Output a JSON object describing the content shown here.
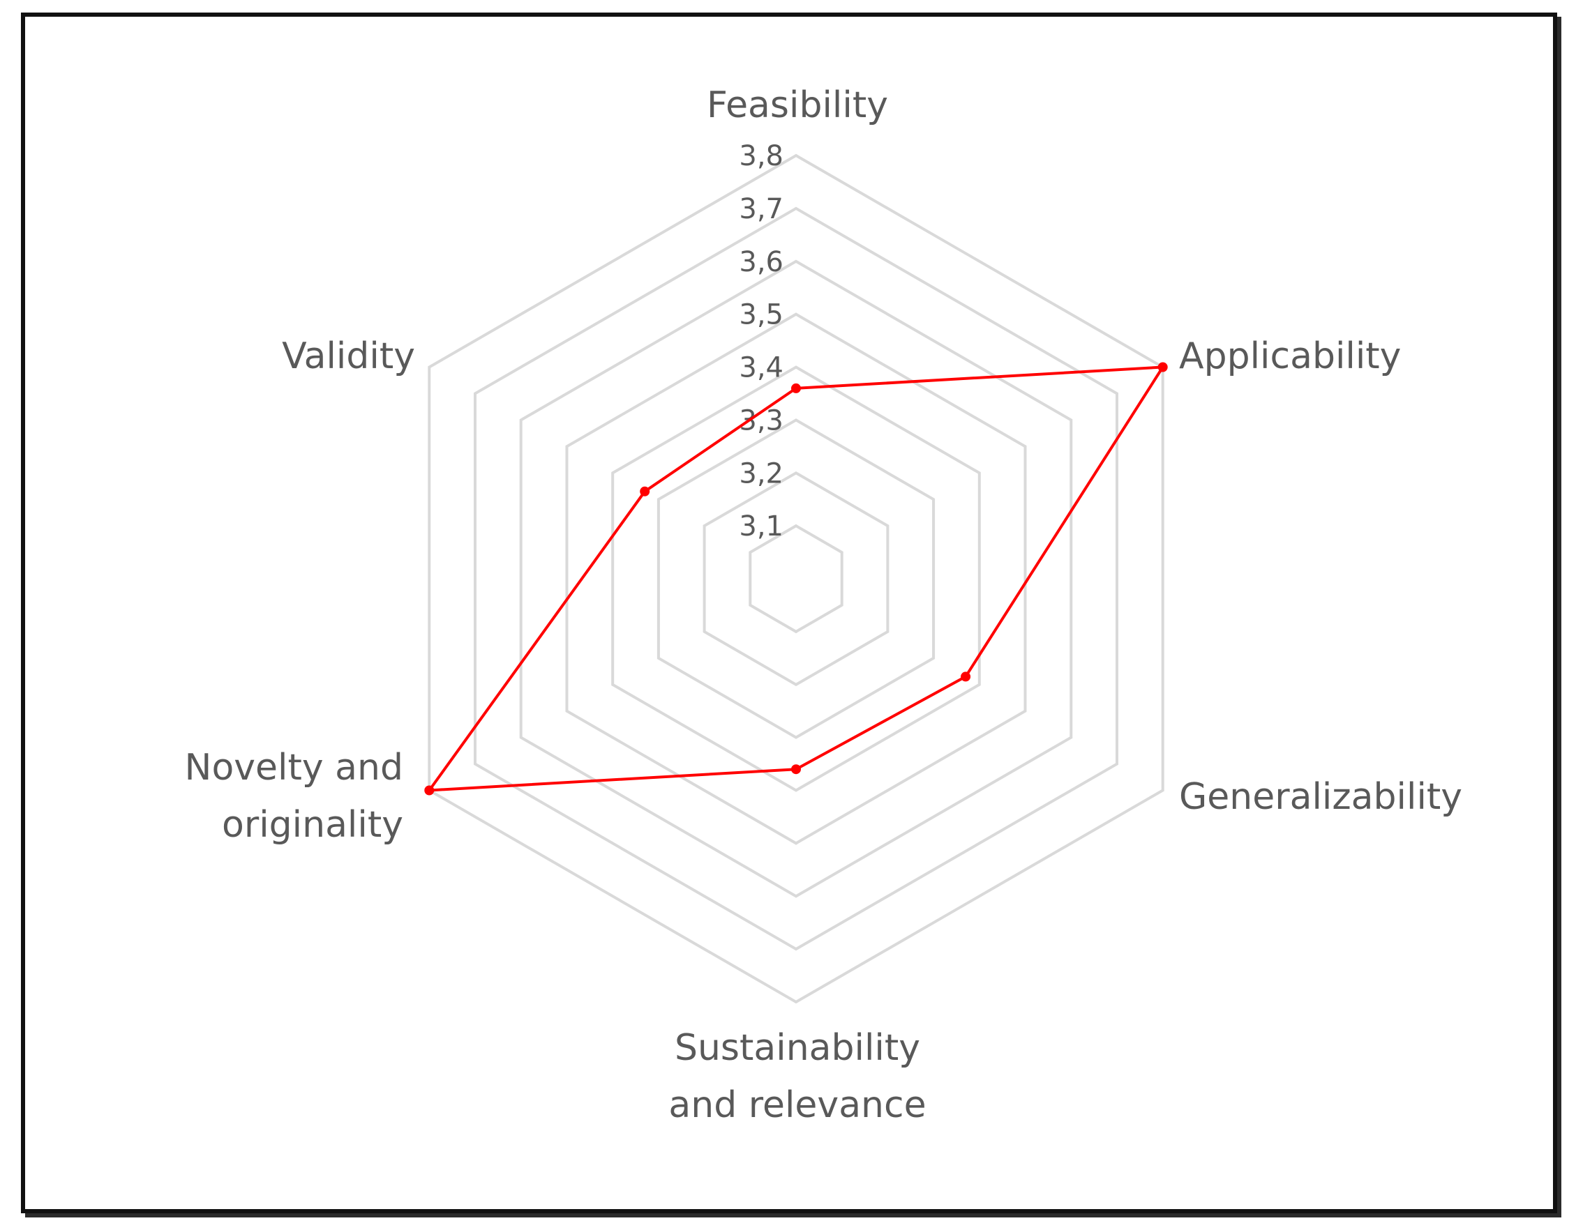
{
  "chart_data": {
    "type": "radar",
    "categories": [
      "Feasibility",
      "Applicability",
      "Generalizability",
      "Sustainability and relevance",
      "Novelty and originality",
      "Validity"
    ],
    "category_lines": [
      [
        "Feasibility"
      ],
      [
        "Applicability"
      ],
      [
        "Generalizability"
      ],
      [
        "Sustainability",
        "and relevance"
      ],
      [
        "Novelty and",
        "originality"
      ],
      [
        "Validity"
      ]
    ],
    "series": [
      {
        "color": "#ff0000",
        "values": [
          3.36,
          3.8,
          3.37,
          3.36,
          3.8,
          3.33
        ]
      }
    ],
    "r_ticks": [
      "3,1",
      "3,2",
      "3,3",
      "3,4",
      "3,5",
      "3,6",
      "3,7",
      "3,8"
    ],
    "r_range": [
      3.0,
      3.8
    ],
    "grid_color": "#d9d9d9",
    "legend": "none"
  }
}
